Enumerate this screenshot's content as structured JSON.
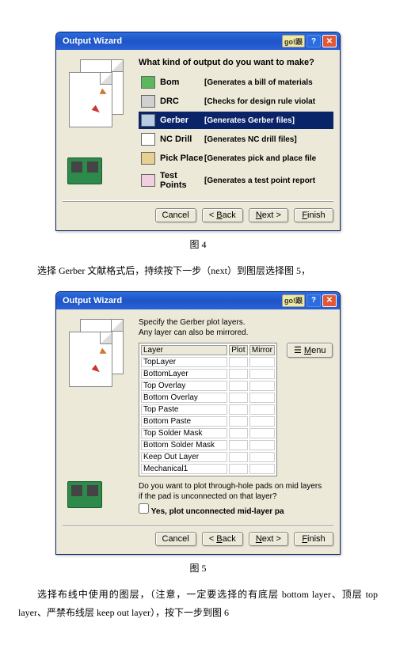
{
  "fig4": {
    "title": "Output Wizard",
    "titlebar_icons": {
      "han": "go!跟",
      "help": "?",
      "close": "✕"
    },
    "heading": "What kind of output do you want to make?",
    "options": [
      {
        "name": "Bom",
        "desc": "[Generates a bill of materials",
        "iconcls": "i1",
        "sel": false
      },
      {
        "name": "DRC",
        "desc": "[Checks for design rule violat",
        "iconcls": "i2",
        "sel": false
      },
      {
        "name": "Gerber",
        "desc": "[Generates Gerber files]",
        "iconcls": "i3",
        "sel": true
      },
      {
        "name": "NC Drill",
        "desc": "[Generates NC drill files]",
        "iconcls": "i4",
        "sel": false
      },
      {
        "name": "Pick Place",
        "desc": "[Generates pick and place file",
        "iconcls": "i5",
        "sel": false
      },
      {
        "name": "Test Points",
        "desc": "[Generates a test point report",
        "iconcls": "i6",
        "sel": false
      }
    ],
    "buttons": {
      "cancel": "Cancel",
      "back": "< Back",
      "next": "Next >",
      "finish": "Finish"
    },
    "caption": "图 4"
  },
  "para1": "选择 Gerber 文献格式后，持续按下一步（next）到图层选择图 5，",
  "fig5": {
    "title": "Output Wizard",
    "desc1": "Specify the Gerber plot layers.",
    "desc2": "Any layer can also be mirrored.",
    "headers": {
      "layer": "Layer",
      "plot": "Plot",
      "mirror": "Mirror"
    },
    "layers": [
      "TopLayer",
      "BottomLayer",
      "Top Overlay",
      "Bottom Overlay",
      "Top Paste",
      "Bottom Paste",
      "Top Solder Mask",
      "Bottom Solder Mask",
      "Keep Out Layer",
      "Mechanical1"
    ],
    "menu_btn": "Menu",
    "q2a": "Do you want to plot through-hole pads on mid layers",
    "q2b": "if the pad is unconnected on that layer?",
    "cb_label": "Yes, plot unconnected mid-layer pa",
    "buttons": {
      "cancel": "Cancel",
      "back": "< Back",
      "next": "Next >",
      "finish": "Finish"
    },
    "caption": "图 5"
  },
  "para2": "选择布线中使用的图层，（注意，一定要选择的有底层 bottom layer、顶层 top layer、严禁布线层 keep out layer），按下一步到图 6",
  "colors": {
    "titlebar_grad_top": "#2a6de0",
    "titlebar_grad_mid": "#1e54c6",
    "window_bg": "#ece9d8",
    "selection_bg": "#0a246a",
    "selection_fg": "#ffffff"
  }
}
